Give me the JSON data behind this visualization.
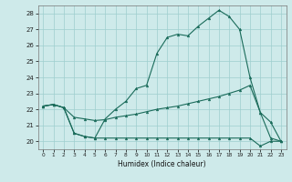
{
  "xlabel": "Humidex (Indice chaleur)",
  "background_color": "#ceeaea",
  "grid_color": "#9ecece",
  "line_color": "#1a6b5a",
  "xlim": [
    -0.5,
    23.5
  ],
  "ylim": [
    19.5,
    28.5
  ],
  "xticks": [
    0,
    1,
    2,
    3,
    4,
    5,
    6,
    7,
    8,
    9,
    10,
    11,
    12,
    13,
    14,
    15,
    16,
    17,
    18,
    19,
    20,
    21,
    22,
    23
  ],
  "yticks": [
    20,
    21,
    22,
    23,
    24,
    25,
    26,
    27,
    28
  ],
  "series": {
    "line1": [
      22.2,
      22.3,
      22.1,
      20.5,
      20.3,
      20.2,
      20.2,
      20.2,
      20.2,
      20.2,
      20.2,
      20.2,
      20.2,
      20.2,
      20.2,
      20.2,
      20.2,
      20.2,
      20.2,
      20.2,
      20.2,
      19.7,
      20.0,
      20.0
    ],
    "line2": [
      22.2,
      22.3,
      22.1,
      21.5,
      21.4,
      21.3,
      21.35,
      21.5,
      21.6,
      21.7,
      21.85,
      22.0,
      22.1,
      22.2,
      22.35,
      22.5,
      22.65,
      22.8,
      23.0,
      23.2,
      23.5,
      21.8,
      21.2,
      20.0
    ],
    "line3": [
      22.2,
      22.3,
      22.1,
      20.5,
      20.3,
      20.2,
      21.4,
      22.0,
      22.5,
      23.3,
      23.5,
      25.5,
      26.5,
      26.7,
      26.6,
      27.2,
      27.7,
      28.2,
      27.8,
      27.0,
      24.0,
      21.8,
      20.2,
      20.0
    ]
  },
  "marker_x": [
    0,
    2,
    3,
    4,
    5,
    6,
    7,
    9,
    10,
    11,
    12,
    13,
    14,
    15,
    16,
    17,
    18,
    20,
    21,
    22,
    23
  ],
  "figsize": [
    3.2,
    2.0
  ],
  "dpi": 100
}
